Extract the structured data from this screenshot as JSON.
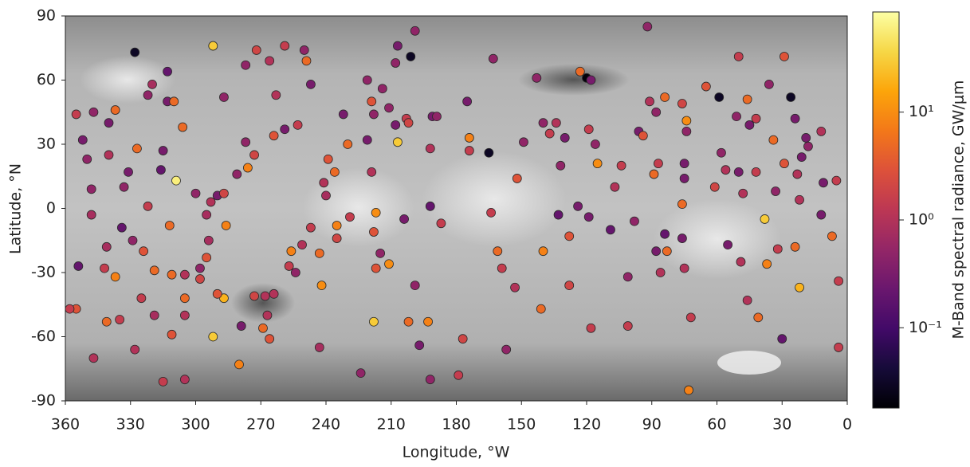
{
  "chart_data": {
    "type": "scatter",
    "xlabel": "Longitude, °W",
    "ylabel": "Latitude, °N",
    "colorbar_label": "M-Band spectral radiance, GW/μm",
    "xlim": [
      360,
      0
    ],
    "xticks": [
      360,
      330,
      300,
      270,
      240,
      210,
      180,
      150,
      120,
      90,
      60,
      30,
      0
    ],
    "ylim": [
      -90,
      90
    ],
    "yticks": [
      90,
      60,
      30,
      0,
      -30,
      -60,
      -90
    ],
    "colormap": "inferno",
    "color_scale": "log",
    "clim": [
      0.018,
      85
    ],
    "cticks": [
      {
        "value": 10,
        "label": "10¹"
      },
      {
        "value": 1,
        "label": "10⁰"
      },
      {
        "value": 0.1,
        "label": "10⁻¹"
      }
    ],
    "x": [
      328,
      292,
      313,
      320,
      322,
      313,
      310,
      355,
      347,
      337,
      340,
      352,
      340,
      327,
      350,
      331,
      315,
      316,
      306,
      309,
      348,
      333,
      322,
      348,
      334,
      312,
      329,
      341,
      324,
      354,
      342,
      319,
      337,
      311,
      305,
      325,
      305,
      335,
      319,
      305,
      341,
      292,
      328,
      311,
      355,
      347,
      315,
      305,
      287,
      290,
      295,
      300,
      293,
      294,
      298,
      290,
      287,
      281,
      286,
      273,
      276,
      277,
      287,
      277,
      272,
      263,
      259,
      264,
      253,
      266,
      259,
      249,
      295,
      298,
      273,
      268,
      264,
      279,
      266,
      267,
      269,
      280,
      256,
      257,
      254,
      251,
      247,
      243,
      250,
      247,
      239,
      241,
      240,
      236,
      235,
      229,
      235,
      242,
      243,
      232,
      230,
      224,
      221,
      219,
      218,
      217,
      218,
      215,
      217,
      219,
      221,
      218,
      211,
      214,
      211,
      208,
      207,
      208,
      207,
      204,
      203,
      202,
      199,
      201,
      202,
      199,
      197,
      193,
      192,
      187,
      192,
      192,
      191,
      189,
      175,
      174,
      174,
      165,
      177,
      179,
      163,
      164,
      161,
      159,
      157,
      153,
      152,
      149,
      143,
      141,
      140,
      140,
      137,
      134,
      132,
      130,
      128,
      128,
      133,
      123,
      120,
      118,
      119,
      116,
      115,
      124,
      119,
      109,
      118,
      107,
      104,
      101,
      101,
      98,
      96,
      94,
      92,
      91,
      88,
      89,
      87,
      88,
      86,
      84,
      84,
      83,
      76,
      76,
      75,
      75,
      74,
      74,
      76,
      75,
      72,
      73,
      65,
      61,
      59,
      58,
      56,
      55,
      50,
      51,
      50,
      49,
      48,
      46,
      46,
      45,
      42,
      42,
      41,
      36,
      38,
      37,
      34,
      33,
      29,
      29,
      26,
      32,
      30,
      23,
      24,
      22,
      24,
      19,
      18,
      12,
      11,
      12,
      7,
      5,
      4,
      4,
      358,
      22,
      21
    ],
    "y": [
      73,
      76,
      64,
      58,
      53,
      50,
      50,
      44,
      45,
      46,
      40,
      32,
      25,
      28,
      23,
      17,
      27,
      18,
      38,
      13,
      9,
      10,
      1,
      -3,
      -9,
      -8,
      -15,
      -18,
      -20,
      -27,
      -28,
      -29,
      -32,
      -31,
      -31,
      -42,
      -42,
      -52,
      -50,
      -50,
      -53,
      -60,
      -66,
      -59,
      -47,
      -70,
      -81,
      -80,
      -42,
      -40,
      -3,
      7,
      3,
      -15,
      -28,
      6,
      7,
      16,
      -8,
      25,
      19,
      31,
      52,
      67,
      74,
      53,
      37,
      34,
      39,
      69,
      76,
      69,
      -23,
      -33,
      -41,
      -41,
      -40,
      -55,
      -61,
      -50,
      -56,
      -73,
      -20,
      -27,
      -30,
      -17,
      -9,
      -21,
      74,
      58,
      23,
      12,
      6,
      17,
      -14,
      -4,
      -8,
      -36,
      -65,
      44,
      30,
      -77,
      60,
      50,
      44,
      -2,
      -11,
      -21,
      -28,
      17,
      32,
      -53,
      -26,
      56,
      47,
      68,
      76,
      39,
      31,
      -5,
      42,
      40,
      83,
      71,
      -53,
      -36,
      -64,
      -53,
      -80,
      -7,
      28,
      1,
      43,
      43,
      50,
      33,
      27,
      26,
      -61,
      -78,
      70,
      -2,
      -20,
      -28,
      -66,
      -37,
      14,
      31,
      61,
      -47,
      -20,
      40,
      35,
      40,
      20,
      33,
      -13,
      -36,
      -3,
      64,
      61,
      60,
      37,
      30,
      21,
      1,
      -4,
      -10,
      -56,
      10,
      20,
      -32,
      -55,
      -6,
      36,
      34,
      85,
      50,
      45,
      16,
      21,
      -20,
      -30,
      -12,
      52,
      -20,
      49,
      -14,
      21,
      14,
      41,
      36,
      2,
      -28,
      -51,
      -85,
      57,
      10,
      52,
      26,
      18,
      -17,
      71,
      43,
      17,
      -25,
      7,
      -43,
      51,
      39,
      42,
      17,
      -51,
      58,
      -5,
      -26,
      32,
      8,
      71,
      21,
      52,
      -19,
      -61,
      16,
      42,
      -37,
      -18,
      33,
      29,
      36,
      12,
      -3,
      -13,
      13,
      -34,
      -65,
      -47,
      4,
      24
    ],
    "c": [
      0.03,
      30,
      0.2,
      0.8,
      0.5,
      0.3,
      5,
      1.5,
      0.5,
      5,
      0.3,
      0.3,
      1,
      5,
      0.5,
      0.3,
      0.3,
      0.2,
      5,
      60,
      0.5,
      0.5,
      1.5,
      0.8,
      0.2,
      5,
      0.5,
      0.8,
      3,
      0.2,
      1.5,
      5,
      8,
      5,
      1,
      1.5,
      5,
      1.5,
      0.8,
      1,
      5,
      30,
      1,
      3,
      3,
      1,
      1.5,
      1,
      20,
      3,
      0.8,
      0.5,
      1,
      0.8,
      0.5,
      0.3,
      2,
      0.5,
      8,
      2,
      8,
      0.5,
      0.5,
      0.5,
      2,
      1,
      0.3,
      3,
      1.5,
      1,
      1.5,
      5,
      3,
      2,
      2,
      1,
      1,
      0.3,
      3,
      1,
      5,
      8,
      8,
      1.5,
      0.5,
      1,
      1.5,
      5,
      0.5,
      0.3,
      3,
      1,
      0.8,
      5,
      2,
      1.5,
      8,
      10,
      0.8,
      0.3,
      5,
      0.5,
      0.5,
      3,
      0.5,
      10,
      3,
      0.5,
      3,
      1,
      0.3,
      30,
      10,
      0.5,
      0.5,
      0.5,
      0.3,
      0.3,
      30,
      0.3,
      1.5,
      2,
      0.5,
      0.03,
      5,
      0.5,
      0.3,
      8,
      0.5,
      1.5,
      1,
      0.2,
      0.3,
      0.5,
      0.3,
      8,
      1.5,
      0.03,
      2,
      1.5,
      0.5,
      1.5,
      5,
      1.5,
      0.5,
      1,
      3,
      0.5,
      0.5,
      5,
      8,
      0.5,
      1.5,
      1,
      0.5,
      0.3,
      3,
      2,
      0.2,
      5,
      0.02,
      0.3,
      1.5,
      0.5,
      10,
      0.3,
      0.3,
      0.2,
      1.5,
      1,
      1.5,
      0.5,
      1.5,
      0.5,
      0.3,
      3,
      0.5,
      1,
      0.5,
      5,
      1.5,
      0.3,
      1,
      0.2,
      5,
      5,
      2,
      0.3,
      0.3,
      0.3,
      10,
      0.5,
      5,
      1,
      1.5,
      8,
      3,
      2,
      0.03,
      0.5,
      1,
      0.3,
      1.5,
      0.5,
      0.3,
      1,
      1,
      1,
      5,
      0.3,
      1.5,
      1.5,
      5,
      0.5,
      30,
      8,
      5,
      0.5,
      3,
      3,
      0.03,
      1.5,
      0.2,
      1,
      0.3,
      20,
      5,
      0.3,
      0.5,
      1,
      0.3,
      0.3,
      5,
      1.5,
      1.5,
      1.5,
      1.5,
      1,
      0.3
    ]
  }
}
